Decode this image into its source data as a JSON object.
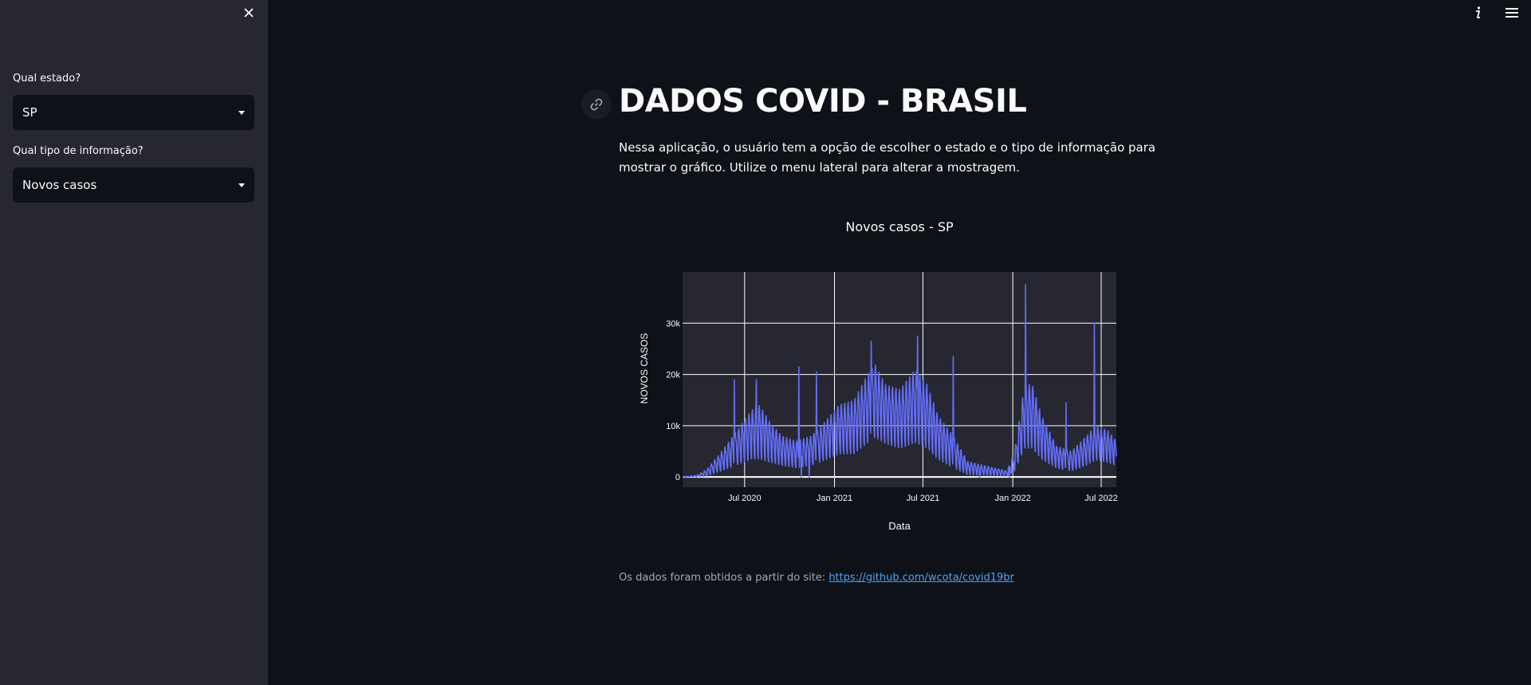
{
  "sidebar": {
    "fields": [
      {
        "label": "Qual estado?",
        "value": "SP"
      },
      {
        "label": "Qual tipo de informação?",
        "value": "Novos casos"
      }
    ]
  },
  "main": {
    "title": "DADOS COVID - BRASIL",
    "description": "Nessa aplicação, o usuário tem a opção de escolher o estado e o tipo de informação para mostrar o gráfico. Utilize o menu lateral para alterar a mostragem.",
    "footer_text": "Os dados foram obtidos a partir do site: ",
    "footer_link": "https://github.com/wcota/covid19br"
  },
  "icons": {
    "close": "close-icon",
    "info": "info-icon",
    "menu": "hamburger-menu-icon",
    "anchor": "link-icon"
  },
  "colors": {
    "sidebar_bg": "#262730",
    "app_bg": "#0e1117",
    "plot_bg": "#262730",
    "series": "#636efa",
    "link": "#4da3ff"
  },
  "chart_data": {
    "type": "line",
    "title": "Novos casos - SP",
    "xlabel": "Data",
    "ylabel": "NOVOS CASOS",
    "xlim": [
      "2020-02-25",
      "2022-08-01"
    ],
    "ylim": [
      -2000,
      40000
    ],
    "xticks": [
      {
        "date": "2020-07-01",
        "label": "Jul 2020"
      },
      {
        "date": "2021-01-01",
        "label": "Jan 2021"
      },
      {
        "date": "2021-07-01",
        "label": "Jul 2021"
      },
      {
        "date": "2022-01-01",
        "label": "Jan 2022"
      },
      {
        "date": "2022-07-01",
        "label": "Jul 2022"
      }
    ],
    "yticks": [
      {
        "value": 0,
        "label": "0"
      },
      {
        "value": 10000,
        "label": "10k"
      },
      {
        "value": 20000,
        "label": "20k"
      },
      {
        "value": 30000,
        "label": "30k"
      }
    ],
    "grid": true,
    "series": [
      {
        "name": "",
        "color": "#636efa",
        "envelope": [
          {
            "date": "2020-02-25",
            "low": 0,
            "high": 0
          },
          {
            "date": "2020-03-25",
            "low": 0,
            "high": 300
          },
          {
            "date": "2020-04-15",
            "low": 100,
            "high": 1500
          },
          {
            "date": "2020-05-15",
            "low": 1000,
            "high": 5000
          },
          {
            "date": "2020-06-15",
            "low": 2000,
            "high": 9000
          },
          {
            "date": "2020-07-15",
            "low": 3000,
            "high": 13000
          },
          {
            "date": "2020-08-01",
            "low": 3000,
            "high": 14000
          },
          {
            "date": "2020-08-20",
            "low": 2500,
            "high": 11000
          },
          {
            "date": "2020-09-15",
            "low": 2000,
            "high": 8000
          },
          {
            "date": "2020-10-15",
            "low": 1500,
            "high": 7000
          },
          {
            "date": "2020-11-15",
            "low": 2000,
            "high": 8000
          },
          {
            "date": "2020-12-15",
            "low": 3000,
            "high": 11000
          },
          {
            "date": "2021-01-10",
            "low": 4000,
            "high": 14000
          },
          {
            "date": "2021-02-10",
            "low": 4000,
            "high": 15000
          },
          {
            "date": "2021-03-10",
            "low": 6000,
            "high": 20000
          },
          {
            "date": "2021-03-25",
            "low": 7000,
            "high": 22000
          },
          {
            "date": "2021-04-15",
            "low": 6000,
            "high": 18000
          },
          {
            "date": "2021-05-15",
            "low": 5000,
            "high": 17000
          },
          {
            "date": "2021-06-15",
            "low": 6000,
            "high": 21000
          },
          {
            "date": "2021-07-10",
            "low": 5000,
            "high": 18000
          },
          {
            "date": "2021-08-01",
            "low": 3000,
            "high": 12000
          },
          {
            "date": "2021-09-01",
            "low": 1500,
            "high": 8000
          },
          {
            "date": "2021-10-01",
            "low": 300,
            "high": 3000
          },
          {
            "date": "2021-11-15",
            "low": 200,
            "high": 2000
          },
          {
            "date": "2021-12-20",
            "low": 100,
            "high": 1200
          },
          {
            "date": "2022-01-05",
            "low": 1000,
            "high": 5000
          },
          {
            "date": "2022-01-25",
            "low": 5000,
            "high": 18000
          },
          {
            "date": "2022-02-10",
            "low": 5000,
            "high": 18000
          },
          {
            "date": "2022-03-01",
            "low": 3000,
            "high": 12000
          },
          {
            "date": "2022-04-01",
            "low": 1500,
            "high": 6000
          },
          {
            "date": "2022-05-01",
            "low": 1000,
            "high": 5000
          },
          {
            "date": "2022-06-01",
            "low": 2000,
            "high": 8000
          },
          {
            "date": "2022-06-20",
            "low": 3000,
            "high": 10000
          },
          {
            "date": "2022-07-15",
            "low": 2500,
            "high": 9000
          },
          {
            "date": "2022-08-01",
            "low": 2000,
            "high": 7000
          }
        ],
        "spikes": [
          {
            "date": "2020-06-10",
            "value": 19000
          },
          {
            "date": "2020-07-25",
            "value": 19000
          },
          {
            "date": "2020-10-20",
            "value": 21500
          },
          {
            "date": "2020-11-25",
            "value": 20500
          },
          {
            "date": "2021-03-17",
            "value": 26500
          },
          {
            "date": "2021-06-20",
            "value": 27500
          },
          {
            "date": "2021-09-01",
            "value": 23500
          },
          {
            "date": "2022-01-27",
            "value": 37500
          },
          {
            "date": "2022-04-20",
            "value": 14500
          },
          {
            "date": "2022-06-17",
            "value": 30000
          }
        ],
        "gaps": [
          {
            "date": "2020-10-25",
            "value": 0
          },
          {
            "date": "2020-11-10",
            "value": 0
          },
          {
            "date": "2021-10-25",
            "value": 0
          },
          {
            "date": "2021-12-25",
            "value": 0
          }
        ]
      }
    ]
  }
}
